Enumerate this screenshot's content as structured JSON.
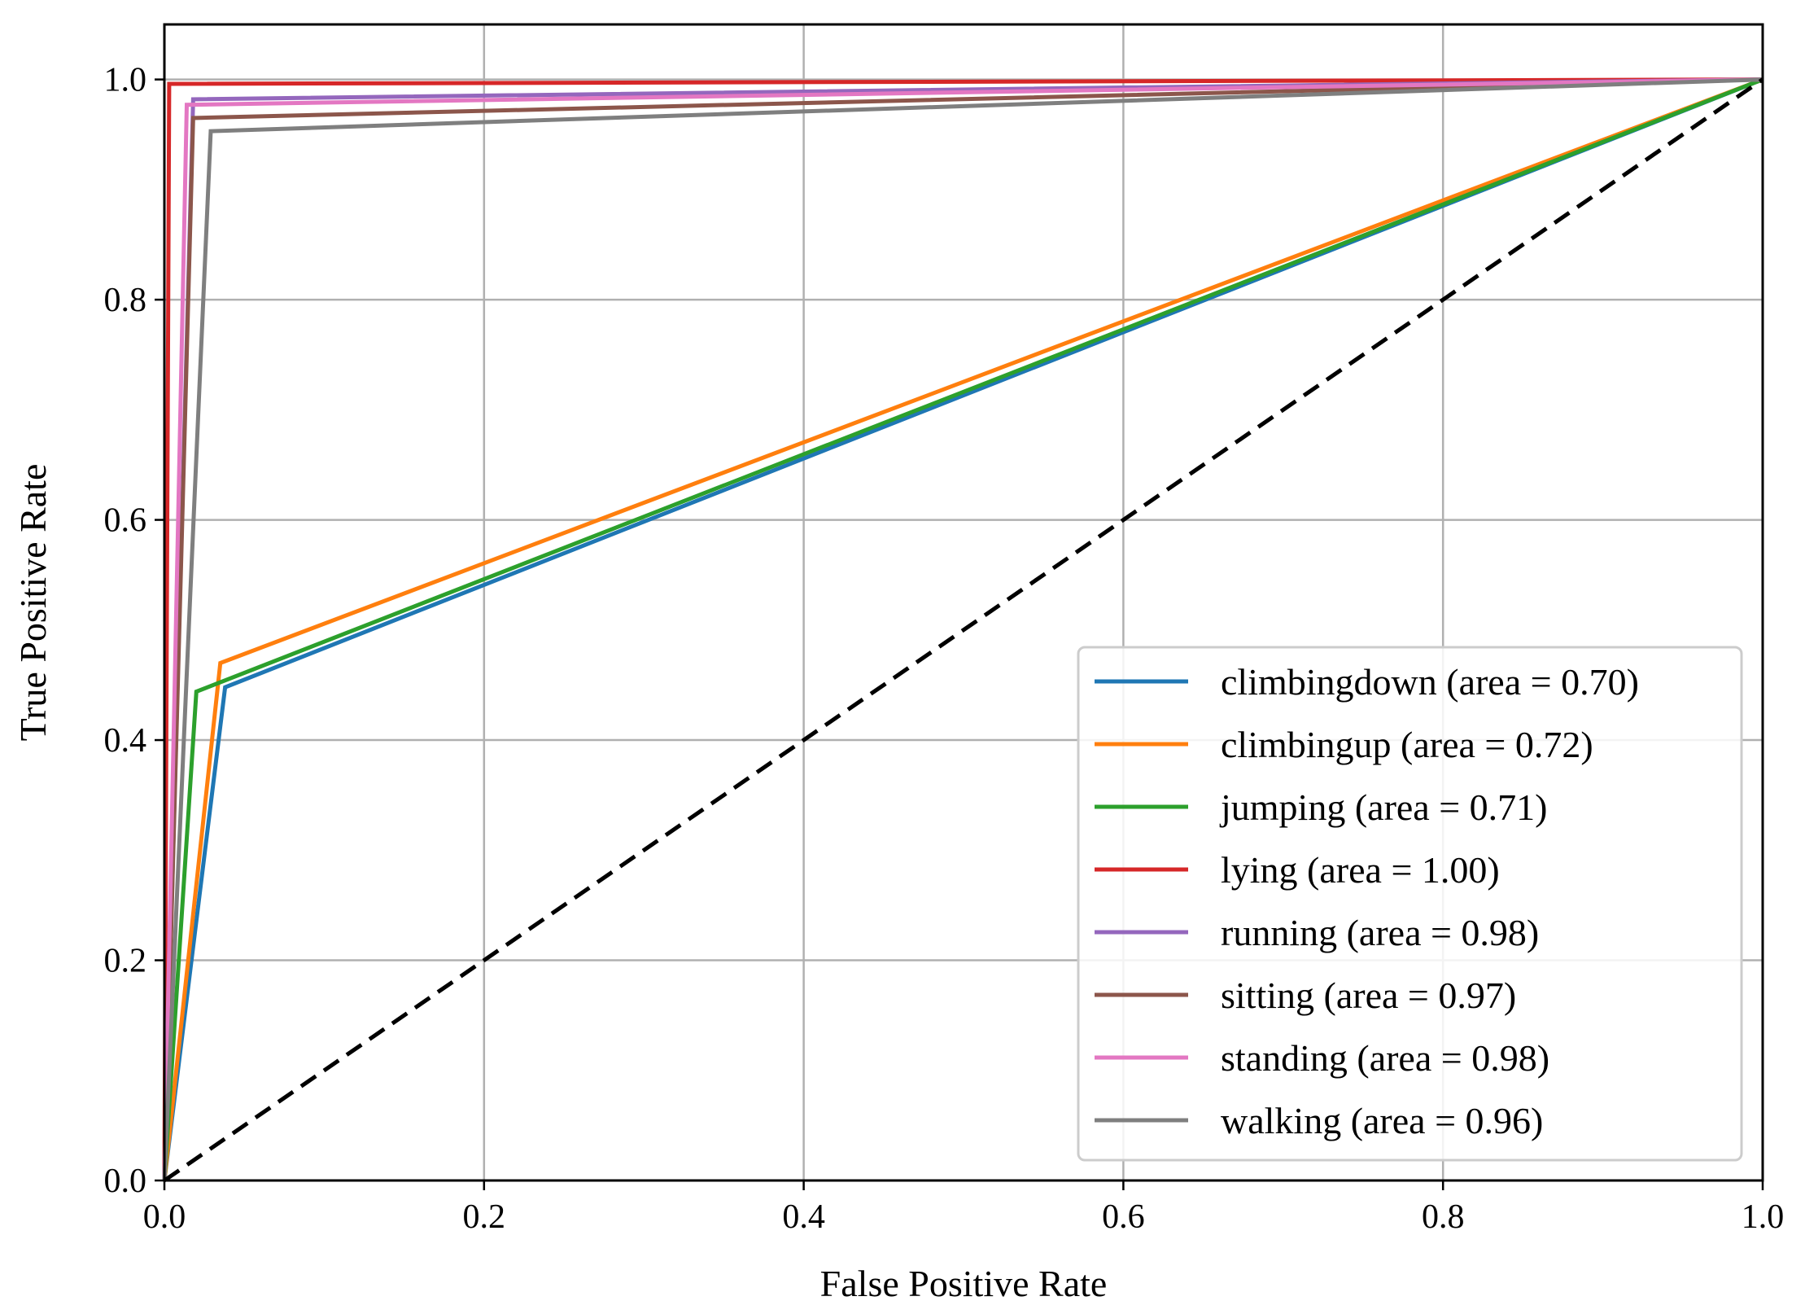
{
  "chart_data": {
    "type": "line",
    "title": "",
    "xlabel": "False Positive Rate",
    "ylabel": "True Positive Rate",
    "xlim": [
      0.0,
      1.0
    ],
    "ylim": [
      0.0,
      1.05
    ],
    "grid": true,
    "legend_position": "lower-right",
    "xticks": [
      "0.0",
      "0.2",
      "0.4",
      "0.6",
      "0.8",
      "1.0"
    ],
    "yticks": [
      "0.0",
      "0.2",
      "0.4",
      "0.6",
      "0.8",
      "1.0"
    ],
    "series": [
      {
        "name": "climbingdown",
        "label": "climbingdown (area = 0.70)",
        "color": "#1f77b4",
        "x": [
          0.0,
          0.038,
          1.0
        ],
        "y": [
          0.0,
          0.448,
          1.0
        ]
      },
      {
        "name": "climbingup",
        "label": "climbingup (area = 0.72)",
        "color": "#ff7f0e",
        "x": [
          0.0,
          0.035,
          1.0
        ],
        "y": [
          0.0,
          0.47,
          1.0
        ]
      },
      {
        "name": "jumping",
        "label": "jumping (area = 0.71)",
        "color": "#2ca02c",
        "x": [
          0.0,
          0.02,
          1.0
        ],
        "y": [
          0.0,
          0.444,
          1.0
        ]
      },
      {
        "name": "lying",
        "label": "lying (area = 1.00)",
        "color": "#d62728",
        "x": [
          0.0,
          0.003,
          1.0
        ],
        "y": [
          0.0,
          0.996,
          1.0
        ]
      },
      {
        "name": "running",
        "label": "running (area = 0.98)",
        "color": "#9467bd",
        "x": [
          0.0,
          0.018,
          1.0
        ],
        "y": [
          0.0,
          0.982,
          1.0
        ]
      },
      {
        "name": "sitting",
        "label": "sitting (area = 0.97)",
        "color": "#8c564b",
        "x": [
          0.0,
          0.018,
          1.0
        ],
        "y": [
          0.0,
          0.965,
          1.0
        ]
      },
      {
        "name": "standing",
        "label": "standing (area = 0.98)",
        "color": "#e377c2",
        "x": [
          0.0,
          0.014,
          1.0
        ],
        "y": [
          0.0,
          0.977,
          1.0
        ]
      },
      {
        "name": "walking",
        "label": "walking (area = 0.96)",
        "color": "#7f7f7f",
        "x": [
          0.0,
          0.029,
          1.0
        ],
        "y": [
          0.0,
          0.953,
          1.0
        ]
      }
    ],
    "reference_line": {
      "name": "chance",
      "color": "#000000",
      "style": "dashed",
      "x": [
        0.0,
        1.0
      ],
      "y": [
        0.0,
        1.0
      ]
    }
  }
}
